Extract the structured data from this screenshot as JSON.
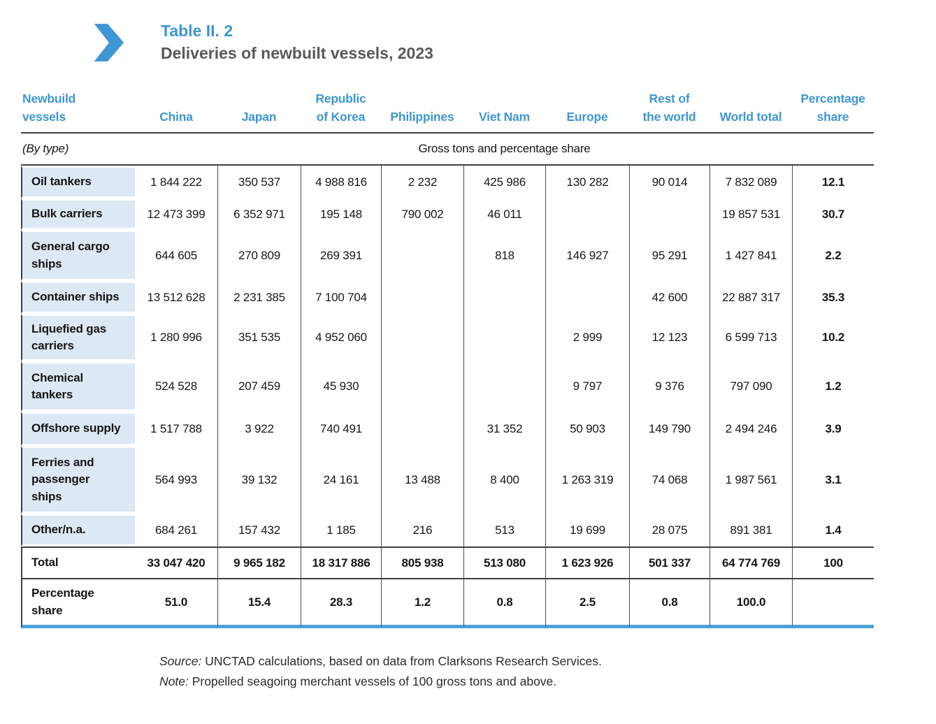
{
  "title": {
    "table_number": "Table II. 2",
    "table_title": "Deliveries of newbuilt vessels, 2023"
  },
  "colors": {
    "accent_blue": "#3E96D3",
    "title_gray": "#58595B",
    "label_cell_bg": "#DCE8F4",
    "bottom_rule_blue": "#4DA0D8"
  },
  "table": {
    "column_headers": [
      "Newbuild\nvessels",
      "China",
      "Japan",
      "Republic\nof Korea",
      "Philippines",
      "Viet Nam",
      "Europe",
      "Rest of\nthe world",
      "World total",
      "Percentage\nshare"
    ],
    "subheader": {
      "left": "(By type)",
      "center": "Gross tons and percentage share"
    },
    "rows": [
      {
        "label": "Oil tankers",
        "values": [
          "1 844 222",
          "350 537",
          "4 988 816",
          "2 232",
          "425 986",
          "130 282",
          "90 014",
          "7 832 089",
          "12.1"
        ]
      },
      {
        "label": "Bulk carriers",
        "values": [
          "12 473 399",
          "6 352 971",
          "195 148",
          "790 002",
          "46 011",
          "",
          "",
          "19 857 531",
          "30.7"
        ]
      },
      {
        "label": "General cargo\nships",
        "values": [
          "644 605",
          "270 809",
          "269 391",
          "",
          "818",
          "146 927",
          "95 291",
          "1 427 841",
          "2.2"
        ]
      },
      {
        "label": "Container ships",
        "values": [
          "13 512 628",
          "2 231 385",
          "7 100 704",
          "",
          "",
          "",
          "42 600",
          "22 887 317",
          "35.3"
        ]
      },
      {
        "label": "Liquefied gas\ncarriers",
        "values": [
          "1 280 996",
          "351 535",
          "4 952 060",
          "",
          "",
          "2 999",
          "12 123",
          "6 599 713",
          "10.2"
        ]
      },
      {
        "label": "Chemical\ntankers",
        "values": [
          "524 528",
          "207 459",
          "45 930",
          "",
          "",
          "9 797",
          "9 376",
          "797 090",
          "1.2"
        ]
      },
      {
        "label": "Offshore supply",
        "values": [
          "1 517 788",
          "3 922",
          "740 491",
          "",
          "31 352",
          "50 903",
          "149 790",
          "2 494 246",
          "3.9"
        ]
      },
      {
        "label": "Ferries and\npassenger\nships",
        "values": [
          "564 993",
          "39 132",
          "24 161",
          "13 488",
          "8 400",
          "1 263 319",
          "74 068",
          "1 987 561",
          "3.1"
        ]
      },
      {
        "label": "Other/n.a.",
        "values": [
          "684 261",
          "157 432",
          "1 185",
          "216",
          "513",
          "19 699",
          "28 075",
          "891 381",
          "1.4"
        ]
      }
    ],
    "total_row": {
      "label": "Total",
      "values": [
        "33 047 420",
        "9 965 182",
        "18 317 886",
        "805 938",
        "513 080",
        "1 623 926",
        "501 337",
        "64 774 769",
        "100"
      ]
    },
    "percentage_row": {
      "label": "Percentage\nshare",
      "values": [
        "51.0",
        "15.4",
        "28.3",
        "1.2",
        "0.8",
        "2.5",
        "0.8",
        "100.0",
        ""
      ]
    }
  },
  "footer": {
    "source_label": "Source:",
    "source_text": "UNCTAD calculations, based on data from Clarksons Research Services.",
    "note_label": "Note:",
    "note_text": "Propelled seagoing merchant vessels of 100 gross tons and above."
  }
}
